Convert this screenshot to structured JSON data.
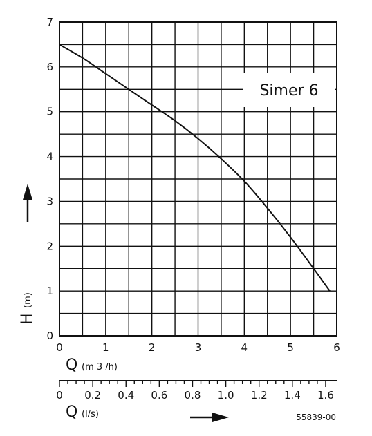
{
  "chart_data": {
    "type": "line",
    "title": "Simer 6",
    "x": [
      0,
      0.5,
      1,
      1.5,
      2,
      2.5,
      3,
      3.5,
      4,
      4.5,
      5,
      5.5,
      5.85
    ],
    "series": [
      {
        "values": [
          6.5,
          6.2,
          5.85,
          5.5,
          5.15,
          4.8,
          4.4,
          3.95,
          3.45,
          2.85,
          2.2,
          1.5,
          1.0
        ]
      }
    ],
    "ylabel": "H",
    "ylabel_unit": "(m)",
    "xlabel": "Q",
    "xlabel_unit": "(m 3 /h)",
    "xlim": [
      0,
      6
    ],
    "ylim": [
      0,
      7
    ],
    "x_ticks": [
      "0",
      "1",
      "2",
      "3",
      "4",
      "5",
      "6"
    ],
    "y_ticks": [
      "0",
      "1",
      "2",
      "3",
      "4",
      "5",
      "6",
      "7"
    ],
    "secondary_x": {
      "label": "Q",
      "unit": "(l/s)",
      "ticks": [
        "0",
        "0.2",
        "0.4",
        "0.6",
        "0.8",
        "1.0",
        "1.2",
        "1.4",
        "1.6"
      ],
      "range": [
        0,
        1.6667
      ]
    },
    "grid": true,
    "reference_code": "55839-00",
    "colors": {
      "line": "#111111",
      "grid": "#111111",
      "background": "#ffffff"
    }
  }
}
